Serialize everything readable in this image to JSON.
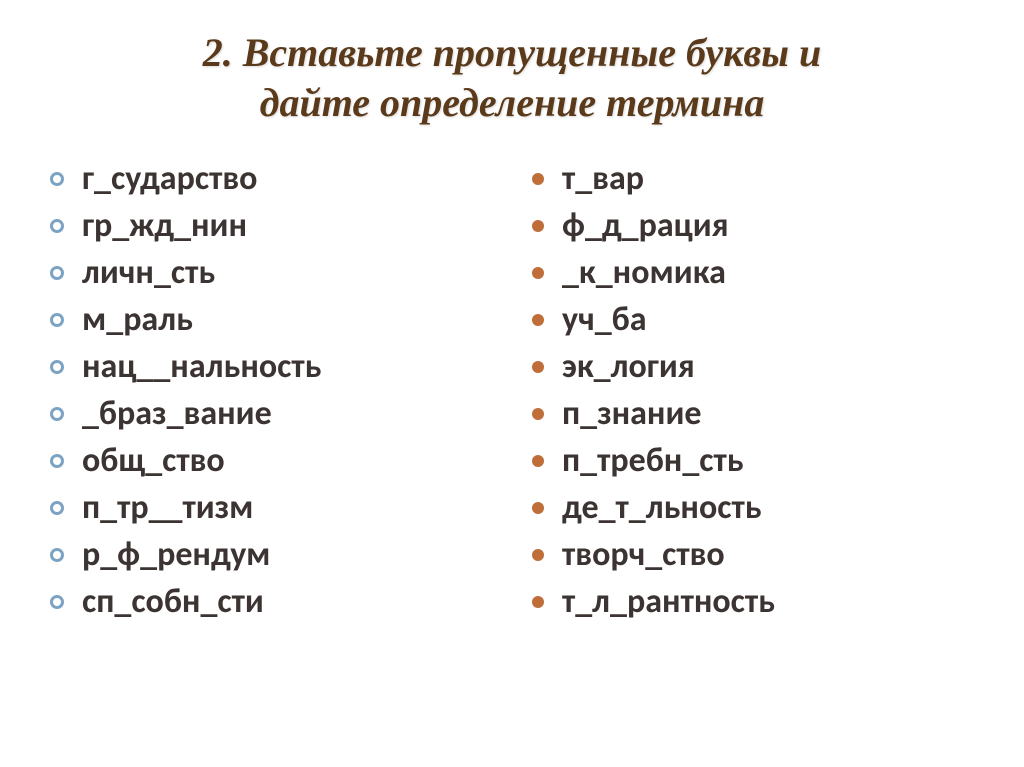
{
  "title": {
    "number": "2",
    "text_line1": ". Вставьте пропущенные буквы и",
    "text_line2": "дайте определение термина",
    "color": "#5a3a1a",
    "fontsize": 40
  },
  "colors": {
    "bullet_left_border": "#7da3c4",
    "bullet_right_fill": "#bf6e3a",
    "word_color": "#3b3432",
    "background": "#ffffff"
  },
  "typography": {
    "word_fontsize": 34,
    "word_weight": "bold",
    "title_family": "Georgia, serif",
    "word_family": "Calibri, sans-serif"
  },
  "left_column": [
    "г_сударство",
    " гр_жд_нин",
    " личн_сть",
    " м_раль",
    " нац__нальность",
    " _браз_вание",
    " общ_ство",
    " п_тр__тизм",
    "р_ф_рендум",
    " сп_собн_сти"
  ],
  "right_column": [
    "т_вар",
    "ф_д_рация",
    " _к_номика",
    "уч_ба",
    "эк_логия",
    "п_знание",
    "п_требн_сть",
    "де_т_льность",
    "творч_ство",
    "т_л_рантность"
  ]
}
